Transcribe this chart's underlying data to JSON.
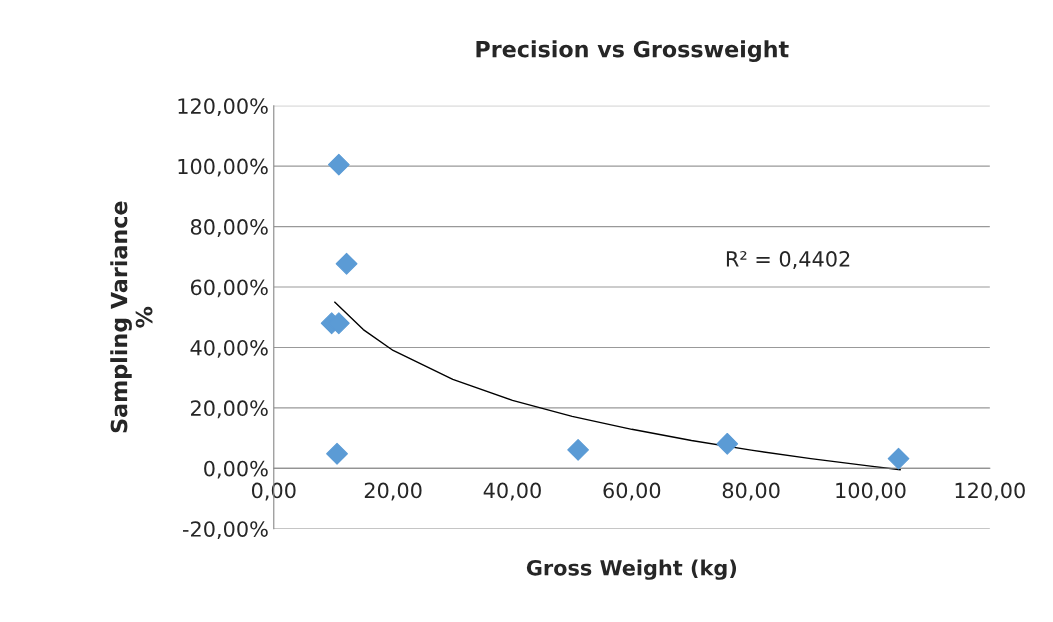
{
  "chart_data": {
    "type": "scatter",
    "title": "Precision vs Grossweight",
    "xlabel": "Gross Weight (kg)",
    "ylabel": "Sampling Variance\n%",
    "series": [
      {
        "color": "#5b9bd5",
        "marker": "diamond",
        "x": [
          10.9,
          12.2,
          9.7,
          10.9,
          10.6,
          51,
          76,
          104.7
        ],
        "values": [
          100.5,
          67.7,
          48,
          48,
          4.8,
          6.1,
          8.1,
          3.2
        ]
      },
      {
        "type": "line",
        "color": "#000000",
        "marker": "none",
        "x": [
          10.2,
          15,
          20,
          30,
          40,
          50,
          60,
          70,
          80,
          90,
          100,
          105
        ],
        "values": [
          55,
          45.9,
          39.0,
          29.4,
          22.5,
          17.2,
          12.9,
          9.2,
          6.0,
          3.2,
          0.7,
          -0.5
        ]
      }
    ],
    "annotations": [
      "R² = 0,4402"
    ],
    "xlim": [
      0,
      120
    ],
    "ylim": [
      -20,
      120
    ],
    "xticks": [
      {
        "value": 0,
        "label": "0,00"
      },
      {
        "value": 20,
        "label": "20,00"
      },
      {
        "value": 40,
        "label": "40,00"
      },
      {
        "value": 60,
        "label": "60,00"
      },
      {
        "value": 80,
        "label": "80,00"
      },
      {
        "value": 100,
        "label": "100,00"
      },
      {
        "value": 120,
        "label": "120,00"
      }
    ],
    "yticks": [
      {
        "value": -20,
        "label": "-20,00%"
      },
      {
        "value": 0,
        "label": "0,00%"
      },
      {
        "value": 20,
        "label": "20,00%"
      },
      {
        "value": 40,
        "label": "40,00%"
      },
      {
        "value": 60,
        "label": "60,00%"
      },
      {
        "value": 80,
        "label": "80,00%"
      },
      {
        "value": 100,
        "label": "100,00%"
      },
      {
        "value": 120,
        "label": "120,00%"
      }
    ],
    "grid": "y",
    "legend": false
  }
}
